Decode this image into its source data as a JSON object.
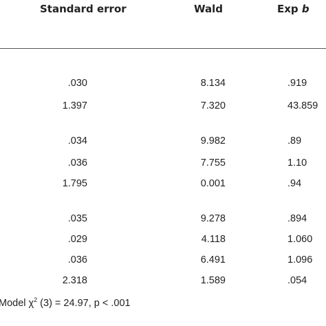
{
  "header": {
    "col_se": "Standard error",
    "col_wald": "Wald",
    "col_exp_prefix": "Exp",
    "col_exp_b": "b"
  },
  "rows": [
    {
      "se": ".030",
      "wald": "8.134",
      "exp": ".919"
    },
    {
      "se": "1.397",
      "wald": "7.320",
      "exp": "43.859"
    },
    {
      "se": ".034",
      "wald": "9.982",
      "exp": ".89"
    },
    {
      "se": ".036",
      "wald": "7.755",
      "exp": "1.10"
    },
    {
      "se": "1.795",
      "wald": "0.001",
      "exp": ".94"
    },
    {
      "se": ".035",
      "wald": "9.278",
      "exp": ".894"
    },
    {
      "se": ".029",
      "wald": "4.118",
      "exp": "1.060"
    },
    {
      "se": ".036",
      "wald": "6.491",
      "exp": "1.096"
    },
    {
      "se": "2.318",
      "wald": "1.589",
      "exp": ".054"
    }
  ],
  "footer": {
    "prefix": "Model χ",
    "sup": "2",
    "suffix": " (3) = 24.97, p < .001"
  }
}
